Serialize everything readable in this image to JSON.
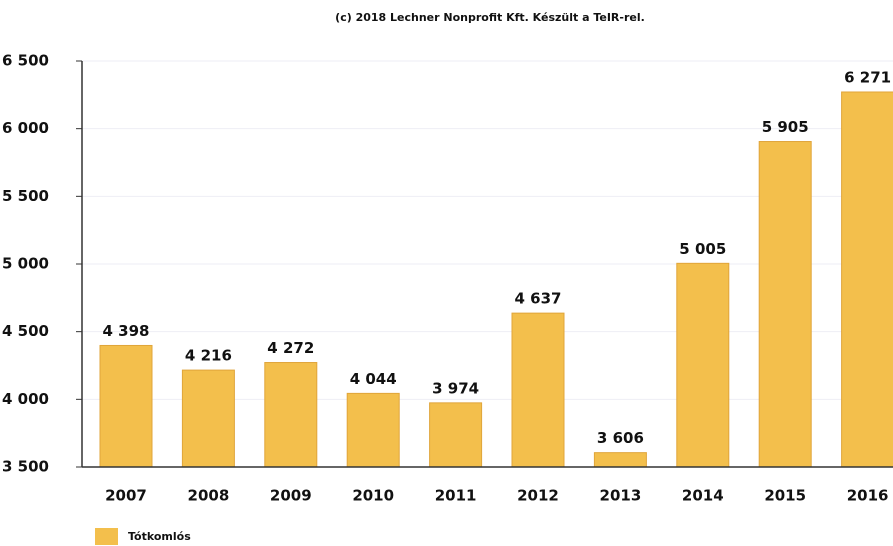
{
  "chart_data": {
    "type": "bar",
    "title": "(c) 2018 Lechner Nonprofit Kft. Készült a TeIR-rel.",
    "categories": [
      "2007",
      "2008",
      "2009",
      "2010",
      "2011",
      "2012",
      "2013",
      "2014",
      "2015",
      "2016"
    ],
    "series": [
      {
        "name": "Tótkomlós",
        "color": "#f3bf4c",
        "values": [
          4398,
          4216,
          4272,
          4044,
          3974,
          4637,
          3606,
          5005,
          5905,
          6271
        ],
        "value_labels": [
          "4 398",
          "4 216",
          "4 272",
          "4 044",
          "3 974",
          "4 637",
          "3 606",
          "5 005",
          "5 905",
          "6 271"
        ]
      }
    ],
    "ylim": [
      3500,
      6500
    ],
    "yticks": [
      {
        "value": 3500,
        "label": "3 500"
      },
      {
        "value": 4000,
        "label": "4 000"
      },
      {
        "value": 4500,
        "label": "4 500"
      },
      {
        "value": 5000,
        "label": "5 000"
      },
      {
        "value": 5500,
        "label": "5 500"
      },
      {
        "value": 6000,
        "label": "6 000"
      },
      {
        "value": 6500,
        "label": "6 500"
      }
    ],
    "grid": true,
    "legend": "bottom-left"
  }
}
